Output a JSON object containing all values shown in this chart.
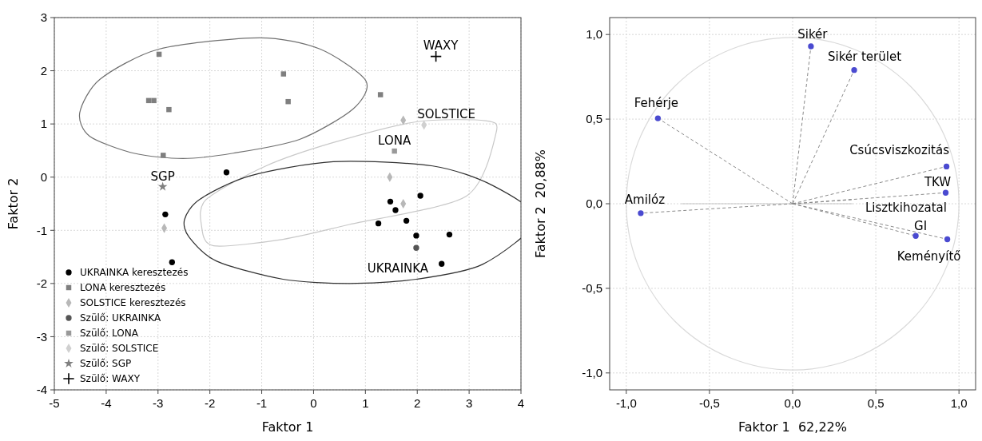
{
  "chart_data": [
    {
      "type": "scatter",
      "xlabel": "Faktor 1",
      "ylabel": "Faktor 2",
      "xlim": [
        -5,
        4
      ],
      "ylim": [
        -4,
        3
      ],
      "xticks": [
        -5,
        -4,
        -3,
        -2,
        -1,
        0,
        1,
        2,
        3,
        4
      ],
      "yticks": [
        -4,
        -3,
        -2,
        -1,
        0,
        1,
        2,
        3
      ],
      "grid": true,
      "legend": "bottom left",
      "series": [
        {
          "name": "UKRAINKA keresztezés",
          "marker": "circle",
          "color": "#000000",
          "x": [
            -1.68,
            1.48,
            1.58,
            2.06,
            -2.86,
            -2.73,
            1.25,
            1.79,
            1.98,
            2.62,
            2.47
          ],
          "values": [
            0.09,
            -0.46,
            -0.62,
            -0.35,
            -0.7,
            -1.6,
            -0.87,
            -0.82,
            -1.1,
            -1.08,
            -1.63
          ]
        },
        {
          "name": "LONA keresztezés",
          "marker": "square",
          "color": "#7f7f7f",
          "x": [
            -2.98,
            -3.18,
            -3.08,
            -2.79,
            -2.9,
            -0.58,
            -0.49,
            1.29
          ],
          "values": [
            2.31,
            1.44,
            1.44,
            1.27,
            0.41,
            1.94,
            1.42,
            1.55
          ]
        },
        {
          "name": "SOLSTICE keresztezés",
          "marker": "diamond",
          "color": "#b8b8b8",
          "x": [
            1.73,
            1.47,
            1.73,
            -2.88
          ],
          "values": [
            1.07,
            0.0,
            -0.5,
            -0.96
          ]
        },
        {
          "name": "Szülő: UKRAINKA",
          "marker": "circle",
          "color": "#555555",
          "x": [
            1.98
          ],
          "values": [
            -1.33
          ]
        },
        {
          "name": "Szülő: LONA",
          "marker": "square",
          "color": "#999999",
          "x": [
            1.56
          ],
          "values": [
            0.49
          ]
        },
        {
          "name": "Szülő: SOLSTICE",
          "marker": "diamond",
          "color": "#d0d0d0",
          "x": [
            2.13
          ],
          "values": [
            0.98
          ]
        },
        {
          "name": "Szülő: SGP",
          "marker": "star",
          "color": "#808080",
          "x": [
            -2.91
          ],
          "values": [
            -0.18
          ]
        },
        {
          "name": "Szülő: WAXY",
          "marker": "cross",
          "color": "#000000",
          "x": [
            2.36
          ],
          "values": [
            2.27
          ]
        }
      ],
      "annotations": [
        {
          "text": "WAXY",
          "x": 2.36,
          "y": 2.27
        },
        {
          "text": "SOLSTICE",
          "x": 2.13,
          "y": 0.98
        },
        {
          "text": "LONA",
          "x": 1.56,
          "y": 0.49
        },
        {
          "text": "SGP",
          "x": -2.91,
          "y": -0.18
        },
        {
          "text": "UKRAINKA",
          "x": 1.98,
          "y": -1.33
        }
      ]
    },
    {
      "type": "scatter",
      "xlabel": "Faktor 1  62,22%",
      "ylabel": "Faktor 2  20,88%",
      "xlim": [
        -1.1,
        1.1
      ],
      "ylim": [
        -1.1,
        1.1
      ],
      "xticks": [
        {
          "value": -1,
          "label": "-1,0"
        },
        {
          "value": -0.5,
          "label": "-0,5"
        },
        {
          "value": 0,
          "label": "0,0"
        },
        {
          "value": 0.5,
          "label": "0,5"
        },
        {
          "value": 1,
          "label": "1,0"
        }
      ],
      "yticks": [
        {
          "value": -1,
          "label": "-1,0"
        },
        {
          "value": -0.5,
          "label": "-0,5"
        },
        {
          "value": 0,
          "label": "0,0"
        },
        {
          "value": 0.5,
          "label": "0,5"
        },
        {
          "value": 1,
          "label": "1,0"
        }
      ],
      "grid": true,
      "series": [
        {
          "marker": "circle",
          "color": "#4a4ad0",
          "x": [
            0.11,
            0.37,
            -0.81,
            0.925,
            0.92,
            -0.913,
            0.74,
            0.93
          ],
          "values": [
            0.93,
            0.79,
            0.505,
            0.22,
            0.065,
            -0.056,
            -0.19,
            -0.21
          ]
        }
      ],
      "annotations": [
        {
          "text": "Sikér",
          "x": 0.11,
          "y": 0.93
        },
        {
          "text": "Sikér terület",
          "x": 0.37,
          "y": 0.79
        },
        {
          "text": "Fehérje",
          "x": -0.81,
          "y": 0.505
        },
        {
          "text": "Csúcsviszkozitás",
          "x": 0.925,
          "y": 0.22
        },
        {
          "text": "TKW",
          "x": 0.92,
          "y": 0.065
        },
        "Lisztkihozatal",
        {
          "text": "Amilóz",
          "x": -0.913,
          "y": -0.056
        },
        {
          "text": "GI",
          "x": 0.74,
          "y": -0.19
        },
        {
          "text": "Keményítő",
          "x": 0.93,
          "y": -0.21
        }
      ]
    }
  ]
}
